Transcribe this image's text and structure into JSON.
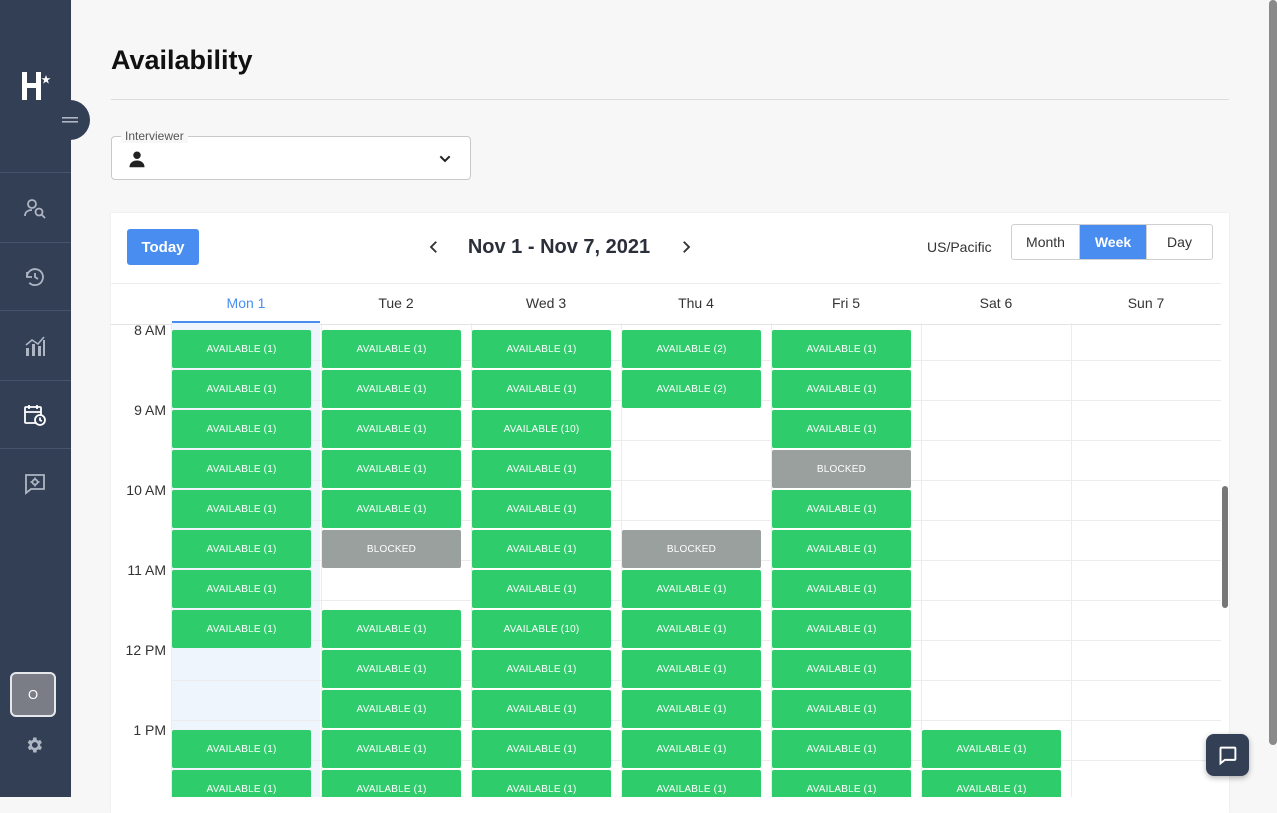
{
  "page": {
    "title": "Availability"
  },
  "sidebar": {
    "avatar_initial": "O",
    "nav": [
      "candidate-search-icon",
      "history-icon",
      "analytics-icon",
      "calendar-clock-icon",
      "feedback-icon"
    ]
  },
  "interviewer": {
    "label": "Interviewer",
    "value": ""
  },
  "toolbar": {
    "today": "Today",
    "range": "Nov 1 - Nov 7, 2021",
    "timezone": "US/Pacific",
    "views": [
      "Month",
      "Week",
      "Day"
    ],
    "active_view": "Week"
  },
  "days": [
    "Mon 1",
    "Tue 2",
    "Wed 3",
    "Thu 4",
    "Fri 5",
    "Sat 6",
    "Sun 7"
  ],
  "selected_day": 0,
  "hours": [
    "8 AM",
    "9 AM",
    "10 AM",
    "11 AM",
    "12 PM",
    "1 PM"
  ],
  "slots": [
    [
      "AVAILABLE (1)",
      "AVAILABLE (1)",
      "AVAILABLE (1)",
      "AVAILABLE (1)",
      "AVAILABLE (1)",
      "AVAILABLE (1)",
      "AVAILABLE (1)",
      "AVAILABLE (1)",
      "",
      "",
      "AVAILABLE (1)",
      "AVAILABLE (1)"
    ],
    [
      "AVAILABLE (1)",
      "AVAILABLE (1)",
      "AVAILABLE (1)",
      "AVAILABLE (1)",
      "AVAILABLE (1)",
      "BLOCKED",
      "",
      "AVAILABLE (1)",
      "AVAILABLE (1)",
      "AVAILABLE (1)",
      "AVAILABLE (1)",
      "AVAILABLE (1)"
    ],
    [
      "AVAILABLE (1)",
      "AVAILABLE (1)",
      "AVAILABLE (10)",
      "AVAILABLE (1)",
      "AVAILABLE (1)",
      "AVAILABLE (1)",
      "AVAILABLE (1)",
      "AVAILABLE (10)",
      "AVAILABLE (1)",
      "AVAILABLE (1)",
      "AVAILABLE (1)",
      "AVAILABLE (1)"
    ],
    [
      "AVAILABLE (2)",
      "AVAILABLE (2)",
      "",
      "",
      "",
      "BLOCKED",
      "AVAILABLE (1)",
      "AVAILABLE (1)",
      "AVAILABLE (1)",
      "AVAILABLE (1)",
      "AVAILABLE (1)",
      "AVAILABLE (1)"
    ],
    [
      "AVAILABLE (1)",
      "AVAILABLE (1)",
      "AVAILABLE (1)",
      "BLOCKED",
      "AVAILABLE (1)",
      "AVAILABLE (1)",
      "AVAILABLE (1)",
      "AVAILABLE (1)",
      "AVAILABLE (1)",
      "AVAILABLE (1)",
      "AVAILABLE (1)",
      "AVAILABLE (1)"
    ],
    [
      "",
      "",
      "",
      "",
      "",
      "",
      "",
      "",
      "",
      "",
      "AVAILABLE (1)",
      "AVAILABLE (1)"
    ],
    [
      "",
      "",
      "",
      "",
      "",
      "",
      "",
      "",
      "",
      "",
      "",
      ""
    ]
  ],
  "colors": {
    "available": "#2ecc6b",
    "blocked": "#9aa09d",
    "accent": "#4a8df0",
    "sidebar": "#323f55"
  }
}
